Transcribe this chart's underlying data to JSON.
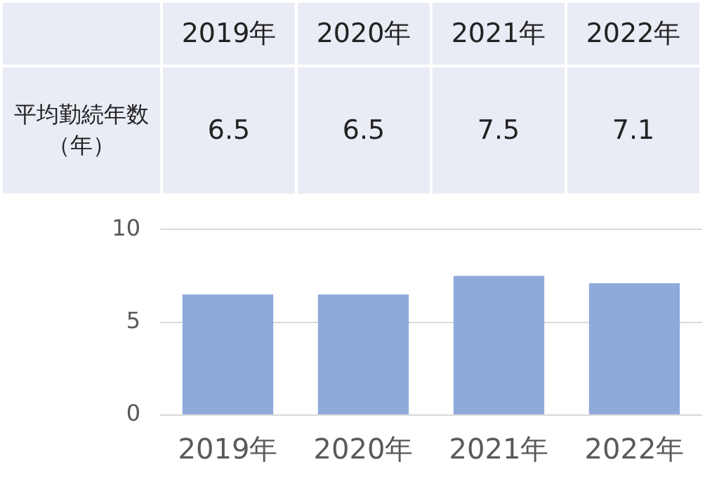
{
  "chart_data": {
    "type": "bar",
    "categories": [
      "2019年",
      "2020年",
      "2021年",
      "2022年"
    ],
    "series": [
      {
        "name": "平均勤続年数（年）",
        "color": "#8eaadb",
        "values": [
          6.5,
          6.5,
          7.5,
          7.1
        ]
      }
    ],
    "ylim": [
      0,
      10
    ],
    "yticks": [
      0,
      5,
      10
    ],
    "grid": "y",
    "legend": false,
    "data_labels": true
  }
}
